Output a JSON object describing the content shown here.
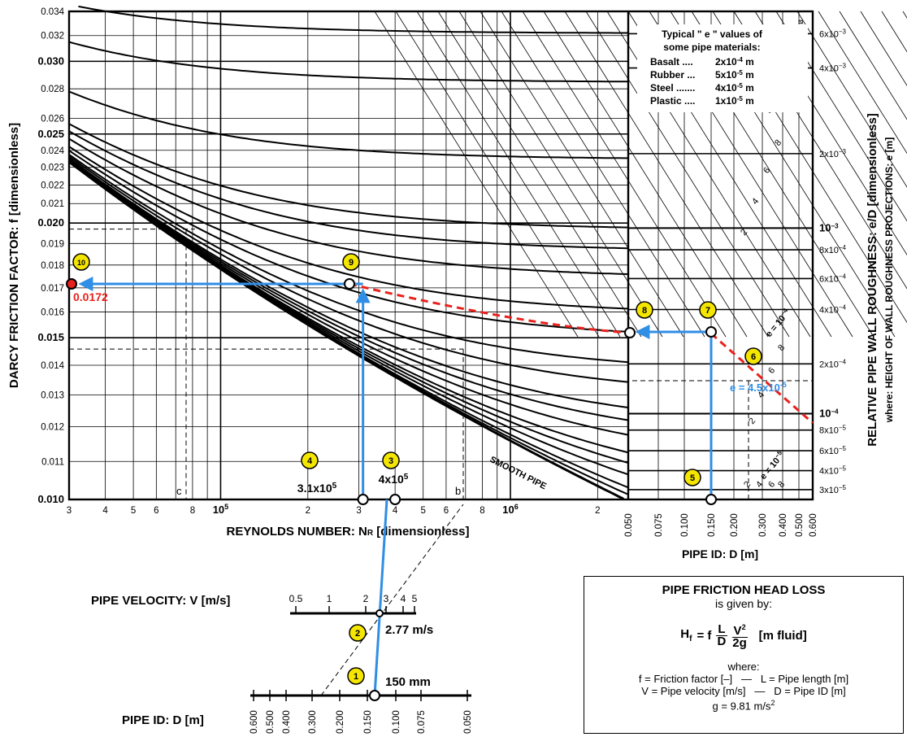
{
  "chart_data": {
    "type": "line",
    "ylabel": "DARCY FRICTION FACTOR:  f  [dimensionless]",
    "xlabel": "REYNOLDS  NUMBER:  N",
    "xlabel_sub": "R",
    "xlabel_unit": "  [dimensionless]",
    "xlim": [
      30000,
      3000000
    ],
    "ylim": [
      0.01,
      0.034
    ],
    "x_scale": "log",
    "y_scale": "log",
    "x_tick_labels": [
      {
        "x": 30000,
        "label": "3"
      },
      {
        "x": 40000,
        "label": "4"
      },
      {
        "x": 50000,
        "label": "5"
      },
      {
        "x": 60000,
        "label": "6"
      },
      {
        "x": 80000,
        "label": "8"
      },
      {
        "x": 100000,
        "label": "10"
      },
      {
        "x": 200000,
        "label": "2"
      },
      {
        "x": 300000,
        "label": "3"
      },
      {
        "x": 400000,
        "label": "4"
      },
      {
        "x": 500000,
        "label": "5"
      },
      {
        "x": 600000,
        "label": "6"
      },
      {
        "x": 800000,
        "label": "8"
      },
      {
        "x": 1000000,
        "label": "10"
      },
      {
        "x": 2000000,
        "label": "2"
      }
    ],
    "x_tick_exps": {
      "100000": "5",
      "1000000": "6"
    },
    "y_ticks": [
      0.01,
      0.011,
      0.012,
      0.013,
      0.014,
      0.015,
      0.016,
      0.017,
      0.018,
      0.019,
      0.02,
      0.021,
      0.022,
      0.023,
      0.024,
      0.025,
      0.026,
      0.028,
      0.03,
      0.032,
      0.034
    ],
    "y_tick_labels": [
      "0.010",
      "0.011",
      "0.012",
      "0.013",
      "0.014",
      "0.015",
      "0.016",
      "0.017",
      "0.018",
      "0.019",
      "0.020",
      "0.021",
      "0.022",
      "0.023",
      "0.024",
      "0.025",
      "0.026",
      "0.028",
      "0.030",
      "0.032",
      "0.034"
    ],
    "y_bold_ticks": [
      "0.010",
      "0.015",
      "0.020",
      "0.025",
      "0.030"
    ],
    "rr_label": "RELATIVE PIPE WALL ROUGHNESS:  e/D [dimensionless]",
    "rr_sublabel": "where: HEIGHT OF WALL ROUGHNESS PROJECTIONS:  e [m]",
    "rr_ticks": [
      {
        "f": 0.03215,
        "label": "6x10",
        "exp": "−3"
      },
      {
        "f": 0.0295,
        "label": "4x10",
        "exp": "−3"
      },
      {
        "f": 0.0238,
        "label": "2x10",
        "exp": "−3"
      },
      {
        "f": 0.01975,
        "label": "10",
        "exp": "−3",
        "bold": true
      },
      {
        "f": 0.0187,
        "label": "8x10",
        "exp": "−4"
      },
      {
        "f": 0.0174,
        "label": "6x10",
        "exp": "−4"
      },
      {
        "f": 0.0161,
        "label": "4x10",
        "exp": "−4"
      },
      {
        "f": 0.01405,
        "label": "2x10",
        "exp": "−4"
      },
      {
        "f": 0.0124,
        "label": "10",
        "exp": "−4",
        "bold": true
      },
      {
        "f": 0.0119,
        "label": "8x10",
        "exp": "−5"
      },
      {
        "f": 0.0113,
        "label": "6x10",
        "exp": "−5"
      },
      {
        "f": 0.01075,
        "label": "4x10",
        "exp": "−5"
      },
      {
        "f": 0.01025,
        "label": "3x10",
        "exp": "−5"
      }
    ],
    "smooth_pipe_label": "SMOOTH PIPE",
    "pipe_id_ticks": [
      "0.050",
      "0.075",
      "0.100",
      "0.150",
      "0.200",
      "0.300",
      "0.400",
      "0.500",
      "0.600"
    ],
    "pipe_id_label": "PIPE  ID:  D [m]",
    "e_lines": [
      "e = 10",
      "e = 10",
      "e = 10"
    ],
    "e_exps": [
      "−3",
      "−4",
      "−5"
    ],
    "e_digits": [
      "8",
      "6",
      "4",
      "2",
      "8",
      "6",
      "4",
      "2",
      "8",
      "6",
      "4",
      "2"
    ],
    "materials_box": {
      "title1": "Typical \" e \"  values of",
      "title2": "some pipe materials:",
      "rows": [
        {
          "name": "Basalt ....",
          "val": "2x10",
          "exp": "-4",
          "unit": " m"
        },
        {
          "name": "Rubber ...",
          "val": "5x10",
          "exp": "-5",
          "unit": " m"
        },
        {
          "name": "Steel .......",
          "val": "4x10",
          "exp": "-5",
          "unit": " m"
        },
        {
          "name": "Plastic ....",
          "val": "1x10",
          "exp": "-5",
          "unit": " m"
        }
      ]
    },
    "e_blue_label": "e = 4.5x10",
    "e_blue_exp": "-5",
    "velocity_label": "PIPE VELOCITY:  V [m/s]",
    "velocity_ticks": [
      "0.5",
      "1",
      "2",
      "3",
      "4",
      "5"
    ],
    "velocity_value_label": "2.77 m/s",
    "pipe_id_lower_label": "PIPE  ID:  D [m]",
    "pipe_id_lower_ticks": [
      "0.600",
      "0.500",
      "0.400",
      "0.300",
      "0.200",
      "0.150",
      "0.100",
      "0.075",
      "0.050"
    ],
    "pipe_id_value_label": "150 mm",
    "reynolds_values": [
      {
        "label": "3.1x10",
        "exp": "5",
        "value": 310000
      },
      {
        "label": "4x10",
        "exp": "5",
        "value": 400000
      }
    ],
    "result": {
      "f": 0.0172,
      "label": "0.0172"
    },
    "step_markers": [
      "1",
      "2",
      "3",
      "4",
      "5",
      "6",
      "7",
      "8",
      "9",
      "10"
    ],
    "construction_letters": [
      "c",
      "b"
    ],
    "right_axis_corner_mark": "ø",
    "colors": {
      "blue": "#2f8ee5",
      "red": "#e8221c",
      "marker": "#f5e600",
      "grid": "#000000"
    }
  },
  "formula": {
    "title": "PIPE FRICTION HEAD LOSS",
    "subtitle": "is given by:",
    "lhs": "H",
    "lhs_sub": "f",
    "eq": "= f",
    "frac1_num": "L",
    "frac1_den": "D",
    "frac2_num": "V",
    "frac2_num_exp": "2",
    "frac2_den": "2g",
    "unit": "[m fluid]",
    "where": "where:",
    "defs": [
      {
        "left": "f = Friction factor [–]",
        "right": "L = Pipe length [m]"
      },
      {
        "left": "V = Pipe velocity [m/s]",
        "right": "D = Pipe ID [m]"
      }
    ],
    "g_def": "g = 9.81 m/s",
    "g_exp": "2"
  }
}
